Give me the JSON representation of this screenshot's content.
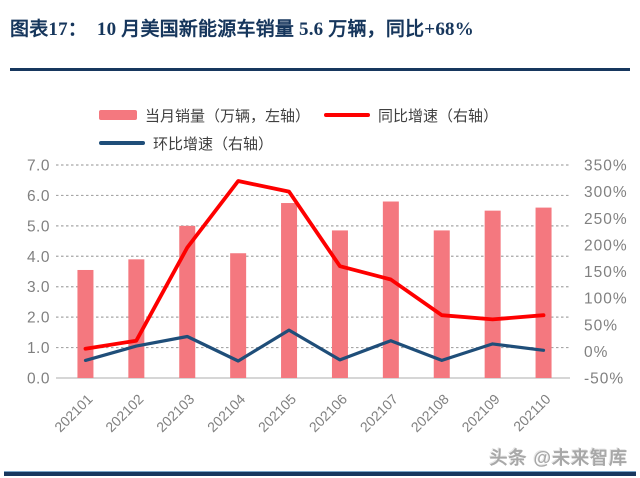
{
  "header": {
    "title": "图表17：  10 月美国新能源车销量 5.6 万辆，同比+68%"
  },
  "legend": {
    "bar_label": "当月销量（万辆，左轴）",
    "yoy_label": "同比增速（右轴）",
    "mom_label": "环比增速（右轴）"
  },
  "watermark": "头条 @未来智库",
  "colors": {
    "bar": "#F4787F",
    "yoy_line": "#FE0000",
    "mom_line": "#1F4E79",
    "accent_rule": "#17375E",
    "axis_text": "#808080",
    "grid": "#A6A6A6",
    "baseline": "#C8C8C8"
  },
  "chart_data": {
    "type": "bar",
    "subtype": "bar+line dual axis",
    "categories": [
      "202101",
      "202102",
      "202103",
      "202104",
      "202105",
      "202106",
      "202107",
      "202108",
      "202109",
      "202110"
    ],
    "series": [
      {
        "name": "当月销量（万辆，左轴）",
        "type": "bar",
        "axis": "left",
        "values": [
          3.55,
          3.9,
          5.0,
          4.1,
          5.75,
          4.85,
          5.8,
          4.85,
          5.5,
          5.6
        ]
      },
      {
        "name": "同比增速（右轴）",
        "type": "line",
        "axis": "right",
        "values": [
          5,
          20,
          195,
          320,
          300,
          160,
          135,
          68,
          60,
          68
        ]
      },
      {
        "name": "环比增速（右轴）",
        "type": "line",
        "axis": "right",
        "values": [
          -17,
          10,
          28,
          -18,
          40,
          -16,
          20,
          -17,
          14,
          2
        ]
      }
    ],
    "left_axis": {
      "min": 0,
      "max": 7,
      "ticks": [
        "7.0",
        "6.0",
        "5.0",
        "4.0",
        "3.0",
        "2.0",
        "1.0",
        "0.0"
      ]
    },
    "right_axis": {
      "min": -50,
      "max": 350,
      "ticks": [
        "350%",
        "300%",
        "250%",
        "200%",
        "150%",
        "100%",
        "50%",
        "0%",
        "-50%"
      ]
    },
    "grid": true,
    "legend_position": "top",
    "title": "10 月美国新能源车销量 5.6 万辆，同比+68%"
  }
}
